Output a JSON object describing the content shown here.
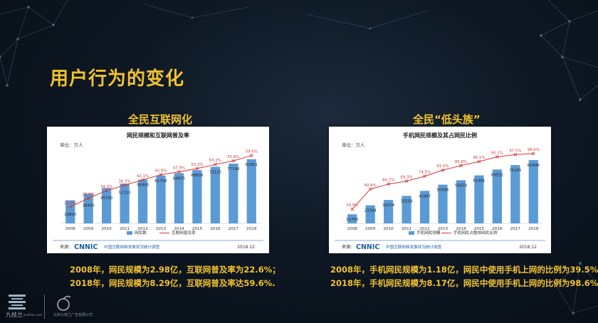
{
  "page": {
    "title": "用户行为的变化",
    "left_subtitle": "全民互联网化",
    "right_subtitle": "全民“低头族”",
    "left_notes": [
      "2008年，网民规模为2.98亿，互联网普及率为22.6%；",
      "2018年，网民规模为8.29亿，互联网普及率达59.6%."
    ],
    "right_notes": [
      "2008年，手机网民规模为1.18亿，网民中使用手机上网的比例为39.5%；",
      "2018年，手机网民规模为8.17亿，网民中使用手机上网的比例为98.6%."
    ],
    "logo_left_text": "九枝兰",
    "logo_left_sub": "jiuzhilan.com",
    "logo_right_text": "北京九枝兰广告有限公司"
  },
  "chart_data": [
    {
      "type": "bar",
      "title": "网民规模和互联网普及率",
      "unit": "单位：万人",
      "categories": [
        "2008",
        "2009",
        "2010",
        "2011",
        "2012",
        "2013",
        "2014",
        "2015",
        "2016",
        "2017",
        "2018"
      ],
      "series": [
        {
          "name": "网民数",
          "type": "bar",
          "values": [
            29800,
            38400,
            45730,
            51310,
            56400,
            61758,
            64875,
            68826,
            73125,
            77198,
            82851
          ]
        },
        {
          "name": "互联网普及率",
          "type": "line",
          "values": [
            22.6,
            28.9,
            34.3,
            38.3,
            42.1,
            45.8,
            47.9,
            50.3,
            53.2,
            55.8,
            59.6
          ],
          "unit": "%"
        }
      ],
      "source": "来源：",
      "source_brand": "CNNIC",
      "source_text": "中国互联网络发展状况统计调查",
      "date": "2018.12",
      "colors": {
        "bar": "#5b9bd5",
        "line": "#d13b3b"
      }
    },
    {
      "type": "bar",
      "title": "手机网民规模及其占网民比例",
      "unit": "单位：万人",
      "categories": [
        "2008",
        "2009",
        "2010",
        "2011",
        "2012",
        "2013",
        "2014",
        "2015",
        "2016",
        "2017",
        "2018"
      ],
      "series": [
        {
          "name": "手机网民规模",
          "type": "bar",
          "values": [
            11760,
            23344,
            30274,
            35558,
            41997,
            50006,
            55678,
            61981,
            69531,
            75265,
            81698
          ]
        },
        {
          "name": "手机网民占整体网民比例",
          "type": "line",
          "values": [
            39.5,
            60.8,
            66.2,
            69.3,
            74.5,
            81.0,
            85.8,
            90.1,
            95.1,
            97.5,
            98.6
          ],
          "unit": "%"
        }
      ],
      "source": "来源：",
      "source_brand": "CNNIC",
      "source_text": "中国互联网络发展状况统计调查",
      "date": "2018.12",
      "colors": {
        "bar": "#5b9bd5",
        "line": "#d13b3b"
      }
    }
  ]
}
